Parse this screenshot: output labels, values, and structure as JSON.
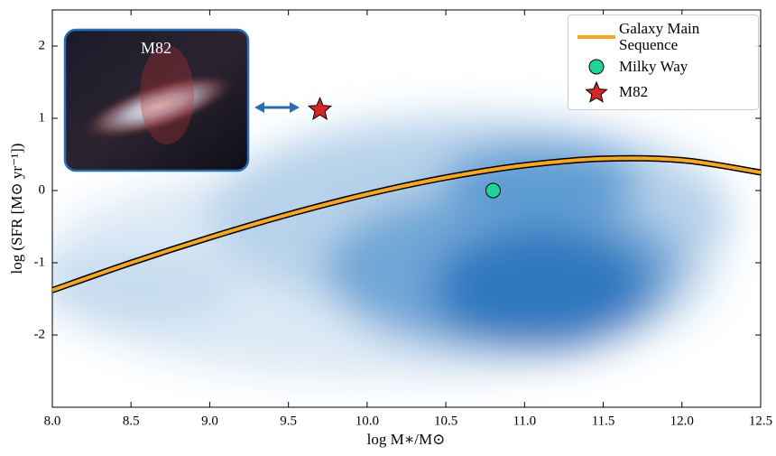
{
  "chart_data": {
    "type": "scatter",
    "x_label": "log M∗/M⊙",
    "y_label": "log (SFR [M⊙ yr⁻¹])",
    "inset_label": "M82",
    "xlim": [
      8.0,
      12.5
    ],
    "ylim": [
      -3,
      2.5
    ],
    "xticks": [
      {
        "value": 8.0,
        "label": "8.0"
      },
      8.5,
      {
        "value": 9.0,
        "label": "9.0"
      },
      9.5,
      {
        "value": 10.0,
        "label": "10.0"
      },
      10.5,
      {
        "value": 11.0,
        "label": "11.0"
      },
      11.5,
      {
        "value": 12.0,
        "label": "12.0"
      },
      12.5
    ],
    "yticks": [
      -2,
      -1,
      0,
      1,
      2
    ],
    "legend": "upper right",
    "series": [
      {
        "name": "Galaxy Main Sequence",
        "type": "line",
        "color": "#f5a623",
        "x": [
          8.0,
          8.5,
          9.0,
          9.5,
          10.0,
          10.5,
          11.0,
          11.5,
          12.0,
          12.5
        ],
        "values": [
          -1.38,
          -1.0,
          -0.65,
          -0.33,
          -0.05,
          0.18,
          0.35,
          0.44,
          0.42,
          0.25
        ]
      },
      {
        "name": "Milky Way",
        "type": "scatter",
        "marker": "circle",
        "color": "#1fd39a",
        "x": [
          10.8
        ],
        "values": [
          0.0
        ]
      },
      {
        "name": "M82",
        "type": "scatter",
        "marker": "star",
        "color": "#d62728",
        "x": [
          9.7
        ],
        "values": [
          1.12
        ]
      }
    ]
  }
}
